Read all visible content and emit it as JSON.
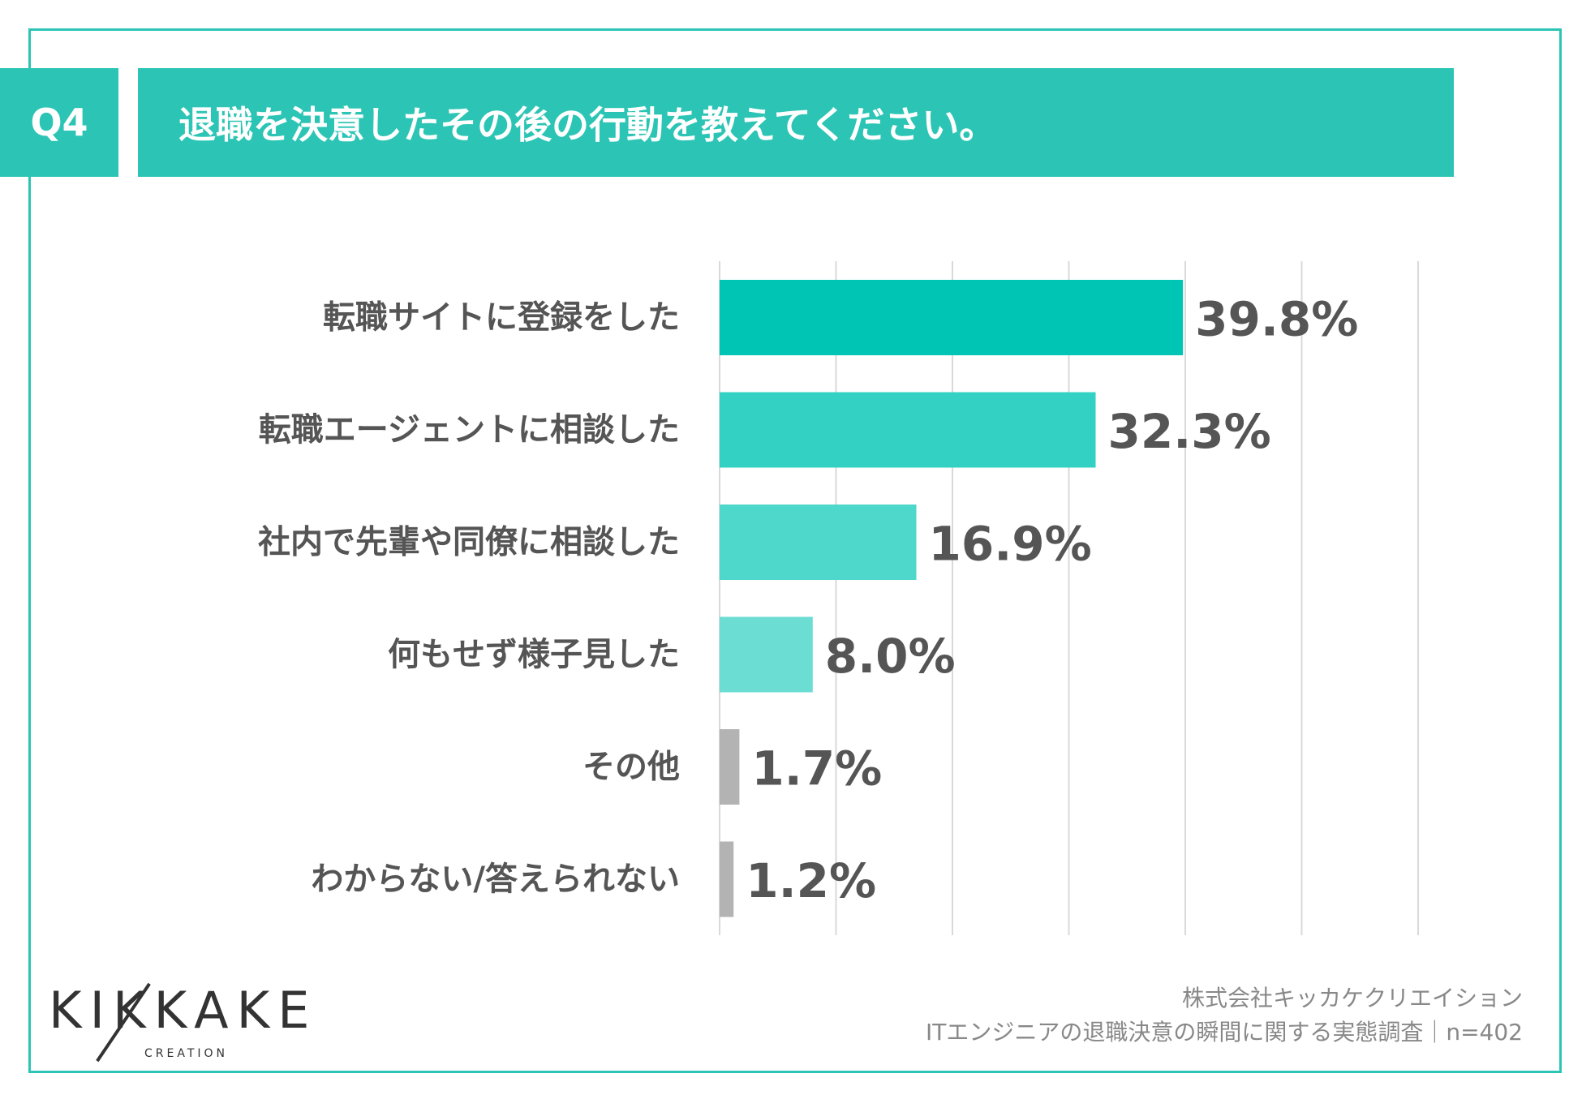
{
  "question": {
    "badge": "Q4",
    "title": "退職を決意したその後の行動を教えてください。"
  },
  "chart_data": {
    "type": "bar",
    "orientation": "horizontal",
    "title": "退職を決意したその後の行動を教えてください。",
    "categories": [
      "転職サイトに登録をした",
      "転職エージェントに相談した",
      "社内で先輩や同僚に相談した",
      "何もせず様子見した",
      "その他",
      "わからない/答えられない"
    ],
    "values": [
      39.8,
      32.3,
      16.9,
      8.0,
      1.7,
      1.2
    ],
    "value_labels": [
      "39.8%",
      "32.3%",
      "16.9%",
      "8.0%",
      "1.7%",
      "1.2%"
    ],
    "bar_colors": [
      "#00c4b4",
      "#33d1c4",
      "#4ed7cb",
      "#6bddd3",
      "#b3b3b3",
      "#b3b3b3"
    ],
    "xlim": [
      0,
      60
    ],
    "grid_step": 10,
    "grid": true,
    "xlabel": "",
    "ylabel": ""
  },
  "logo": {
    "main": "KIKKAKE",
    "sub": "CREATION"
  },
  "credit": {
    "company": "株式会社キッカケクリエイション",
    "survey": "ITエンジニアの退職決意の瞬間に関する実態調査｜n=402"
  },
  "colors": {
    "accent": "#2cc5b5",
    "text": "#555555",
    "grid": "#d9d9d9"
  }
}
